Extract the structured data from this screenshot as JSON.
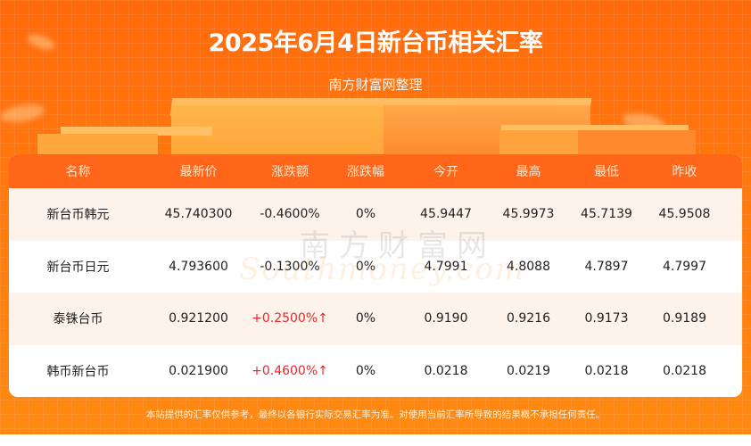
{
  "header": {
    "title": "2025年6月4日新台币相关汇率",
    "subtitle": "南方财富网整理"
  },
  "table": {
    "columns": [
      "名称",
      "最新价",
      "涨跌额",
      "涨跌幅",
      "今开",
      "最高",
      "最低",
      "昨收"
    ],
    "rows": [
      {
        "name": "新台币韩元",
        "latest": "45.740300",
        "change": "-0.4600%",
        "change_dir": "down",
        "pct": "0%",
        "open": "45.9447",
        "high": "45.9973",
        "low": "45.7139",
        "prev_close": "45.9508"
      },
      {
        "name": "新台币日元",
        "latest": "4.793600",
        "change": "-0.1300%",
        "change_dir": "down",
        "pct": "0%",
        "open": "4.7991",
        "high": "4.8088",
        "low": "4.7897",
        "prev_close": "4.7997"
      },
      {
        "name": "泰铢台币",
        "latest": "0.921200",
        "change": "+0.2500%↑",
        "change_dir": "up",
        "pct": "0%",
        "open": "0.9190",
        "high": "0.9216",
        "low": "0.9173",
        "prev_close": "0.9189"
      },
      {
        "name": "韩币新台币",
        "latest": "0.021900",
        "change": "+0.4600%↑",
        "change_dir": "up",
        "pct": "0%",
        "open": "0.0218",
        "high": "0.0219",
        "low": "0.0218",
        "prev_close": "0.0218"
      }
    ]
  },
  "watermark": {
    "cn": "南方财富网",
    "en": "Southmoney.com"
  },
  "footer": {
    "disclaimer": "本站提供的汇率仅供参考，最终以各银行实际交易汇率为准。对使用当前汇率所导致的结果概不承担任何责任。"
  },
  "colors": {
    "banner": "#ff7a10",
    "table_header": "#ff661a",
    "row_alt": "#fdf3ea",
    "up": "#e8282b"
  }
}
